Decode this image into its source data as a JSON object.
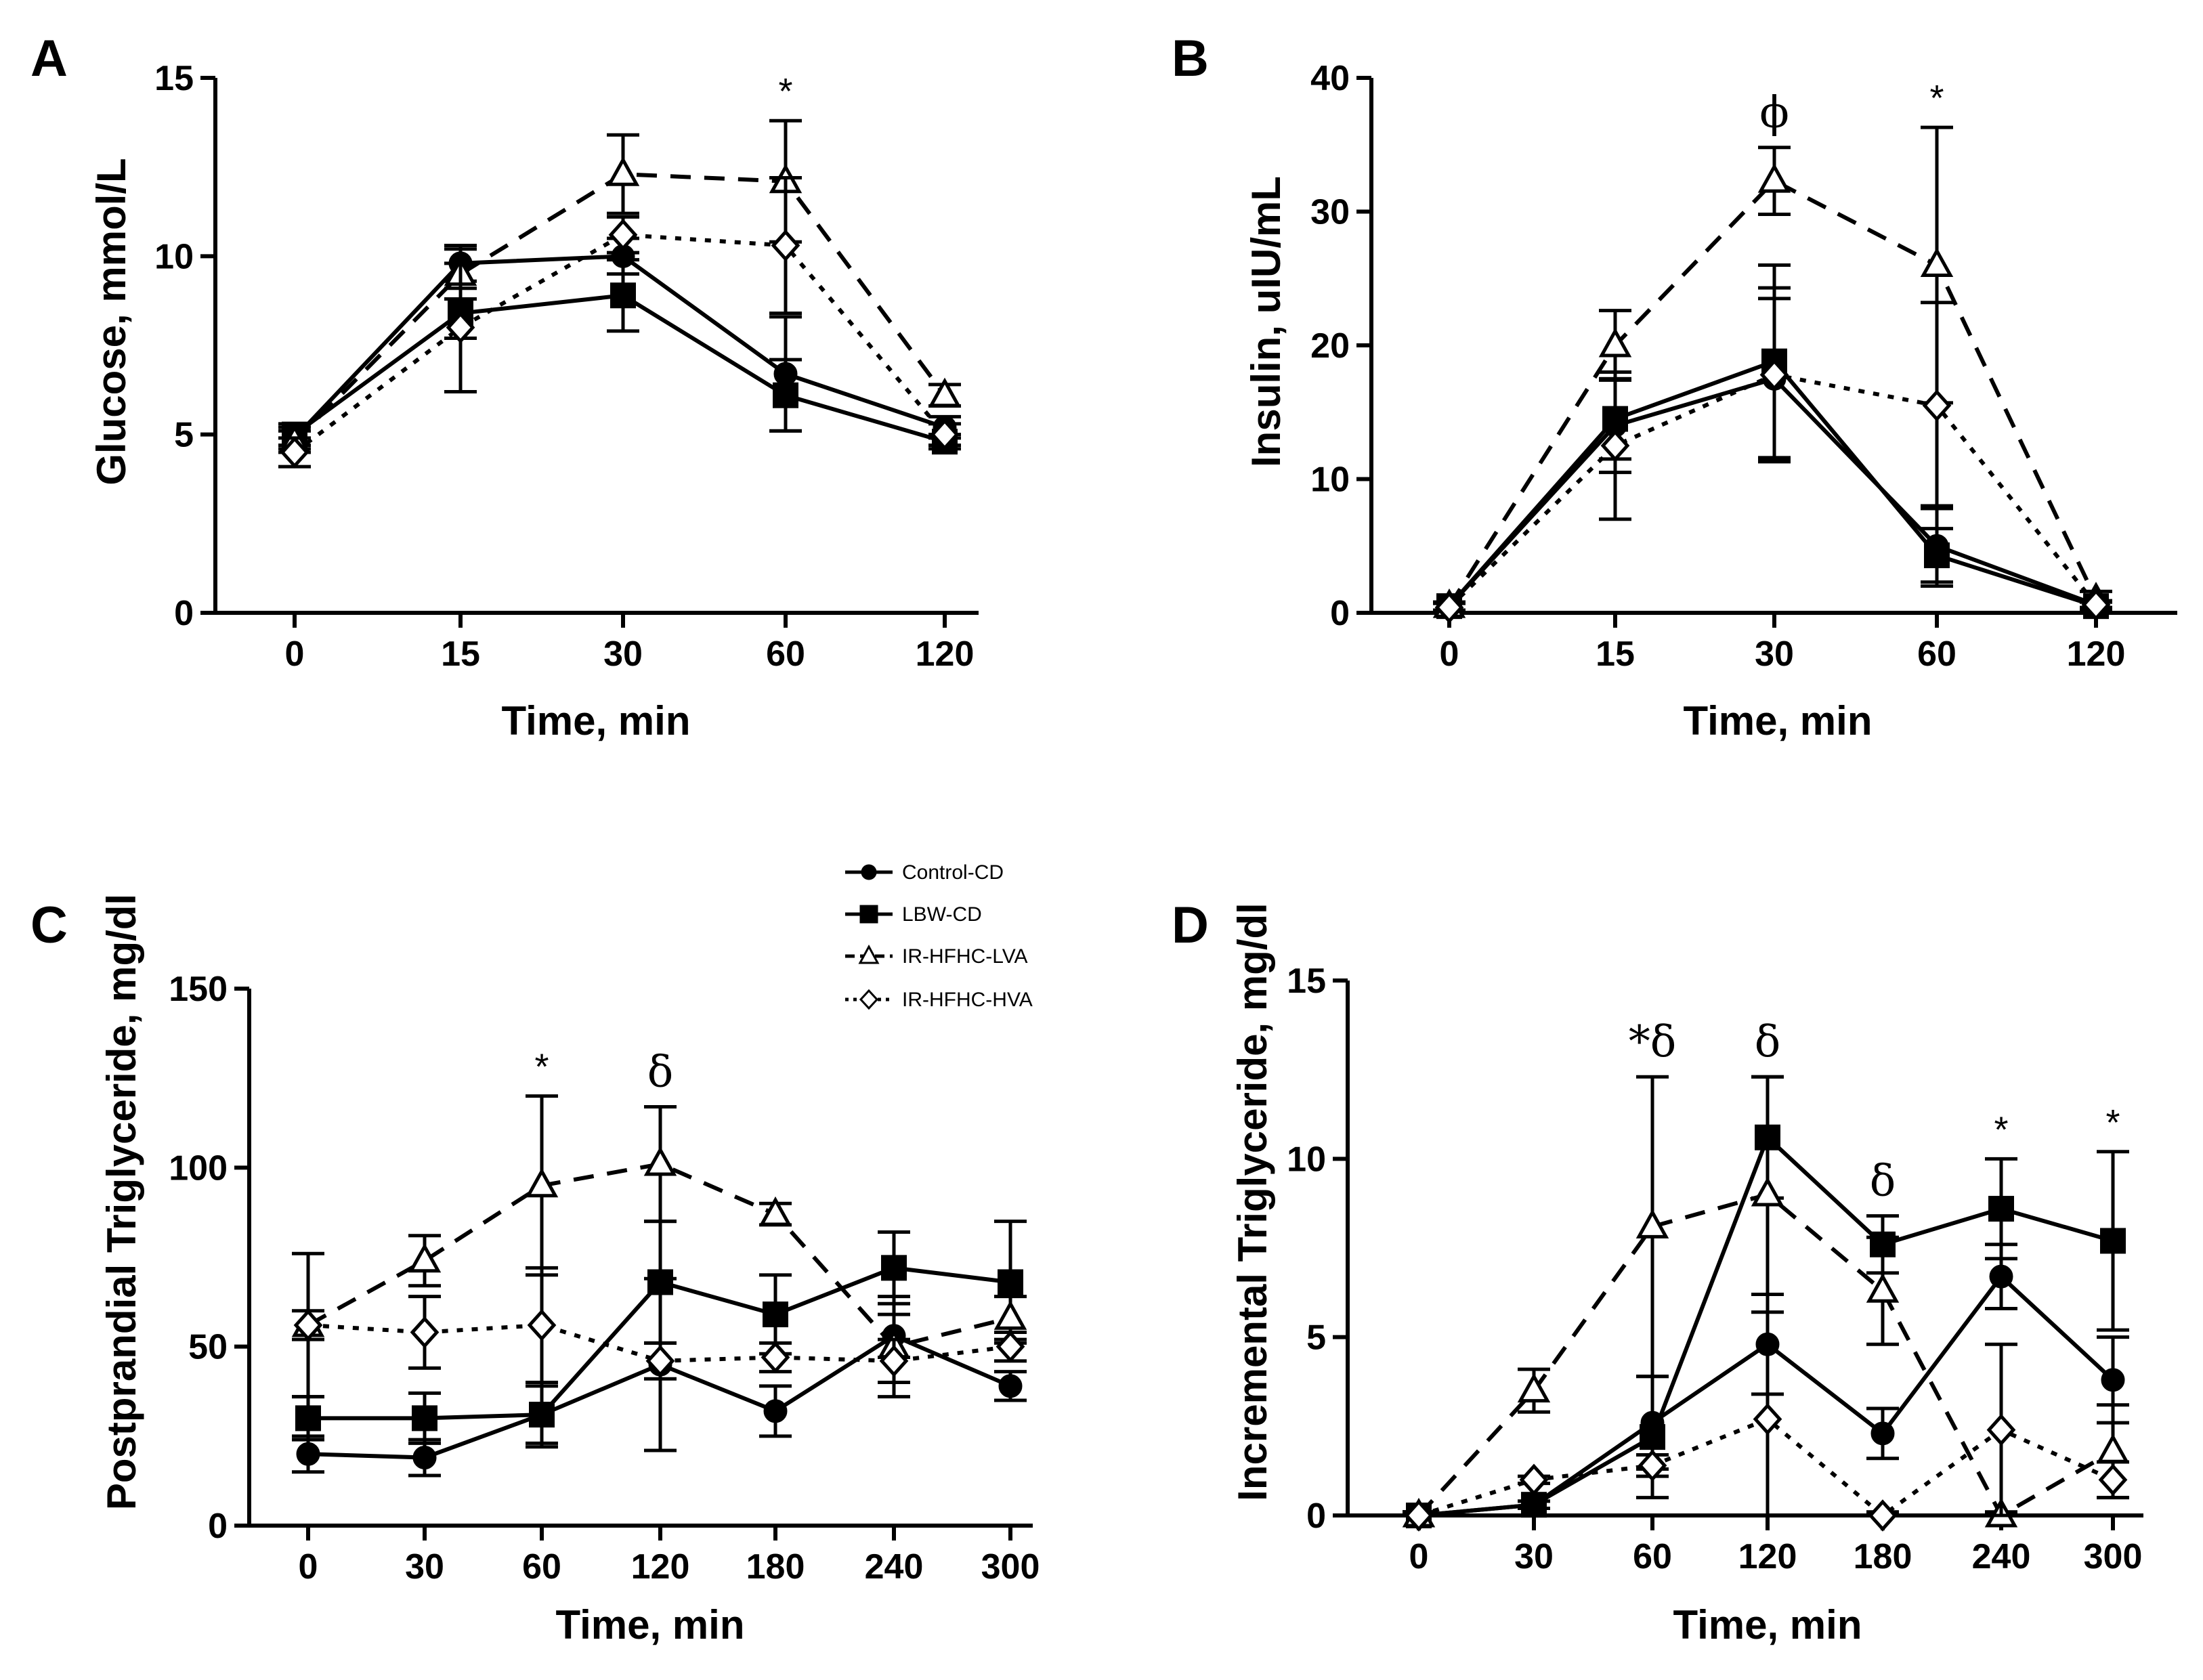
{
  "chart_data": [
    {
      "panel": "A",
      "type": "line",
      "xlabel": "Time, min",
      "ylabel": "Glucose, mmol/L",
      "categories": [
        "0",
        "15",
        "30",
        "60",
        "120"
      ],
      "ylim": [
        0,
        15
      ],
      "yticks": [
        0,
        5,
        10,
        15
      ],
      "series": [
        {
          "name": "Control-CD",
          "values": [
            4.9,
            9.8,
            10.0,
            6.7,
            5.2
          ],
          "errors": [
            0.3,
            0.5,
            0.5,
            1.6,
            0.3
          ]
        },
        {
          "name": "LBW-CD",
          "values": [
            5.0,
            8.4,
            8.9,
            6.1,
            4.8
          ],
          "errors": [
            0.3,
            0.7,
            1.0,
            1.0,
            0.2
          ]
        },
        {
          "name": "IR-HFHC-LVA",
          "values": [
            4.8,
            9.5,
            12.3,
            12.1,
            6.1
          ],
          "errors": [
            0.3,
            0.7,
            1.1,
            1.7,
            0.3
          ]
        },
        {
          "name": "IR-HFHC-HVA",
          "values": [
            4.5,
            8.0,
            10.6,
            10.3,
            5.0
          ],
          "errors": [
            0.4,
            1.8,
            0.5,
            1.9,
            0.3
          ]
        }
      ],
      "annotations": [
        {
          "category": "60",
          "text": "*"
        }
      ]
    },
    {
      "panel": "B",
      "type": "line",
      "xlabel": "Time, min",
      "ylabel": "Insulin, uIU/mL",
      "categories": [
        "0",
        "15",
        "30",
        "60",
        "120"
      ],
      "ylim": [
        0,
        40
      ],
      "yticks": [
        0,
        10,
        20,
        30,
        40
      ],
      "series": [
        {
          "name": "Control-CD",
          "values": [
            0.5,
            14.0,
            17.5,
            5.0,
            0.6
          ],
          "errors": [
            0.3,
            3.5,
            6.0,
            3.0,
            0.3
          ]
        },
        {
          "name": "LBW-CD",
          "values": [
            0.5,
            14.5,
            18.8,
            4.3,
            0.5
          ],
          "errors": [
            0.3,
            3.0,
            7.2,
            2.0,
            0.3
          ]
        },
        {
          "name": "IR-HFHC-LVA",
          "values": [
            0.5,
            20.0,
            32.3,
            26.0,
            1.0
          ],
          "errors": [
            0.3,
            2.6,
            2.5,
            10.3,
            0.6
          ]
        },
        {
          "name": "IR-HFHC-HVA",
          "values": [
            0.4,
            12.5,
            17.8,
            15.5,
            0.6
          ],
          "errors": [
            0.3,
            5.5,
            6.5,
            7.7,
            0.3
          ]
        }
      ],
      "annotations": [
        {
          "category": "30",
          "text": "ϕ"
        },
        {
          "category": "60",
          "text": "*"
        }
      ]
    },
    {
      "panel": "C",
      "type": "line",
      "xlabel": "Time, min",
      "ylabel": "Postprandial Triglyceride, mg/dl",
      "categories": [
        "0",
        "30",
        "60",
        "120",
        "180",
        "240",
        "300"
      ],
      "ylim": [
        0,
        150
      ],
      "yticks": [
        0,
        50,
        100,
        150
      ],
      "series": [
        {
          "name": "Control-CD",
          "values": [
            20,
            19,
            31,
            45,
            32,
            53,
            39
          ],
          "errors": [
            5,
            5,
            8,
            24,
            7,
            6,
            4
          ]
        },
        {
          "name": "LBW-CD",
          "values": [
            30,
            30,
            31,
            68,
            59,
            72,
            68
          ],
          "errors": [
            6,
            7,
            9,
            17,
            11,
            10,
            17
          ]
        },
        {
          "name": "IR-HFHC-LVA",
          "values": [
            56,
            74,
            95,
            101,
            87,
            50,
            58
          ],
          "errors": [
            20,
            7,
            25,
            16,
            3,
            14,
            6
          ]
        },
        {
          "name": "IR-HFHC-HVA",
          "values": [
            56,
            54,
            56,
            46,
            47,
            46,
            50
          ],
          "errors": [
            4,
            10,
            16,
            5,
            4,
            6,
            4
          ]
        }
      ],
      "annotations": [
        {
          "category": "60",
          "text": "*"
        },
        {
          "category": "120",
          "text": "δ"
        }
      ]
    },
    {
      "panel": "D",
      "type": "line",
      "xlabel": "Time, min",
      "ylabel": "Incremental Triglyceride, mg/dl",
      "categories": [
        "0",
        "30",
        "60",
        "120",
        "180",
        "240",
        "300"
      ],
      "ylim": [
        0,
        15
      ],
      "yticks": [
        0,
        5,
        10,
        15
      ],
      "series": [
        {
          "name": "Control-CD",
          "values": [
            0,
            0.3,
            2.6,
            4.8,
            2.3,
            6.7,
            3.8
          ],
          "errors": [
            0.1,
            0.1,
            1.3,
            1.4,
            0.7,
            0.9,
            1.2
          ]
        },
        {
          "name": "LBW-CD",
          "values": [
            0,
            0.3,
            2.2,
            10.6,
            7.6,
            8.6,
            7.7
          ],
          "errors": [
            0.1,
            0.1,
            1.7,
            1.7,
            0.8,
            1.4,
            2.5
          ]
        },
        {
          "name": "IR-HFHC-LVA",
          "values": [
            0,
            3.5,
            8.1,
            9.0,
            6.3,
            0,
            1.8
          ],
          "errors": [
            0.1,
            0.6,
            4.2,
            3.3,
            1.5,
            0.1,
            1.3
          ]
        },
        {
          "name": "IR-HFHC-HVA",
          "values": [
            0,
            1.0,
            1.4,
            2.7,
            0,
            2.4,
            1.0
          ],
          "errors": [
            0.1,
            0.1,
            0.3,
            3.5,
            0.1,
            2.4,
            0.5
          ]
        }
      ],
      "annotations": [
        {
          "category": "60",
          "text": "*δ"
        },
        {
          "category": "120",
          "text": "δ"
        },
        {
          "category": "180",
          "text": "δ"
        },
        {
          "category": "240",
          "text": "*"
        },
        {
          "category": "300",
          "text": "*"
        }
      ]
    }
  ],
  "legend": [
    {
      "name": "Control-CD",
      "marker": "circle-filled",
      "line": "solid"
    },
    {
      "name": "LBW-CD",
      "marker": "square-filled",
      "line": "solid"
    },
    {
      "name": "IR-HFHC-LVA",
      "marker": "triangle-open",
      "line": "dashed"
    },
    {
      "name": "IR-HFHC-HVA",
      "marker": "diamond-open",
      "line": "dotted"
    }
  ],
  "colors": {
    "ink": "#000000",
    "background": "#ffffff",
    "open_marker_fill": "#ffffff"
  }
}
